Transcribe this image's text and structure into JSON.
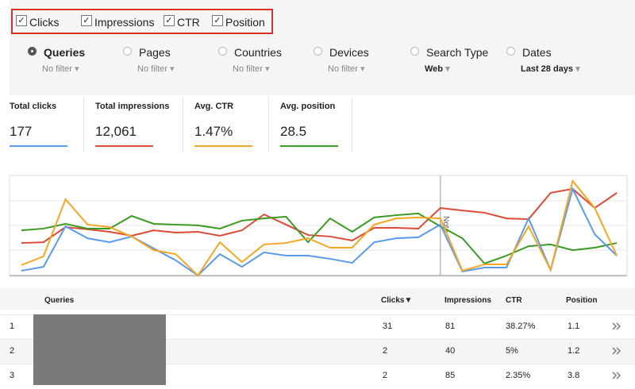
{
  "metrics_bar": {
    "checked": [
      true,
      true,
      true,
      true
    ]
  },
  "filters": [
    {
      "label": "Queries",
      "value": "No filter"
    },
    {
      "label": "Pages",
      "value": "No filter"
    },
    {
      "label": "Countries",
      "value": "No filter"
    },
    {
      "label": "Devices",
      "value": "No filter"
    },
    {
      "label": "Search Type",
      "value": "Web"
    },
    {
      "label": "Dates",
      "value": "Last 28 days"
    }
  ],
  "totals": [
    {
      "label": "Total clicks",
      "value": "177"
    },
    {
      "label": "Total impressions",
      "value": "12,061"
    },
    {
      "label": "Avg. CTR",
      "value": "1.47%"
    },
    {
      "label": "Avg. position",
      "value": "28.5"
    }
  ],
  "chart_data": {
    "type": "line",
    "ylim": [
      0,
      4
    ],
    "annotation": {
      "label": "Note",
      "x": 19
    },
    "series": [
      {
        "name": "Clicks",
        "color": "#5a9aea",
        "values": [
          0.19,
          0.35,
          1.98,
          1.5,
          1.34,
          1.57,
          1.09,
          0.61,
          0,
          0.86,
          0.35,
          0.93,
          0.8,
          0.8,
          0.67,
          0.51,
          1.34,
          1.5,
          1.54,
          2.05,
          0.16,
          0.32,
          0.32,
          2.3,
          0.22,
          3.49,
          1.66,
          0.8
        ]
      },
      {
        "name": "Impressions",
        "color": "#dc4a38",
        "values": [
          1.31,
          1.34,
          1.95,
          1.86,
          1.76,
          1.6,
          1.82,
          1.73,
          1.76,
          1.6,
          1.82,
          2.46,
          2.05,
          1.63,
          1.57,
          1.41,
          1.92,
          1.92,
          1.89,
          2.72,
          2.62,
          2.53,
          2.3,
          2.27,
          3.33,
          3.49,
          2.72,
          3.33
        ]
      },
      {
        "name": "CTR",
        "color": "#f5a623",
        "values": [
          0.42,
          0.77,
          3.07,
          2.05,
          1.95,
          1.57,
          1.02,
          0.86,
          0,
          1.34,
          0.54,
          1.25,
          1.31,
          1.5,
          1.12,
          1.12,
          2.05,
          2.3,
          2.34,
          2.3,
          0.19,
          0.45,
          0.45,
          1.98,
          0.22,
          3.81,
          2.72,
          0.8
        ]
      },
      {
        "name": "Position",
        "color": "#3a9a22",
        "values": [
          1.82,
          1.89,
          2.08,
          1.89,
          1.89,
          2.4,
          2.08,
          2.05,
          2.02,
          1.89,
          2.21,
          2.3,
          2.37,
          1.34,
          2.3,
          1.76,
          2.34,
          2.43,
          2.5,
          1.98,
          1.5,
          0.48,
          0.8,
          1.18,
          1.25,
          1.02,
          1.12,
          1.31
        ]
      }
    ]
  },
  "table": {
    "headers": [
      "Queries",
      "Clicks▼",
      "Impressions",
      "CTR",
      "Position"
    ],
    "rows": [
      {
        "rank": 1,
        "clicks": 31,
        "impressions": 81,
        "ctr": "38.27%",
        "position": 1.1
      },
      {
        "rank": 2,
        "clicks": 2,
        "impressions": 40,
        "ctr": "5%",
        "position": 1.2
      },
      {
        "rank": 3,
        "clicks": 2,
        "impressions": 85,
        "ctr": "2.35%",
        "position": 3.8
      }
    ]
  }
}
